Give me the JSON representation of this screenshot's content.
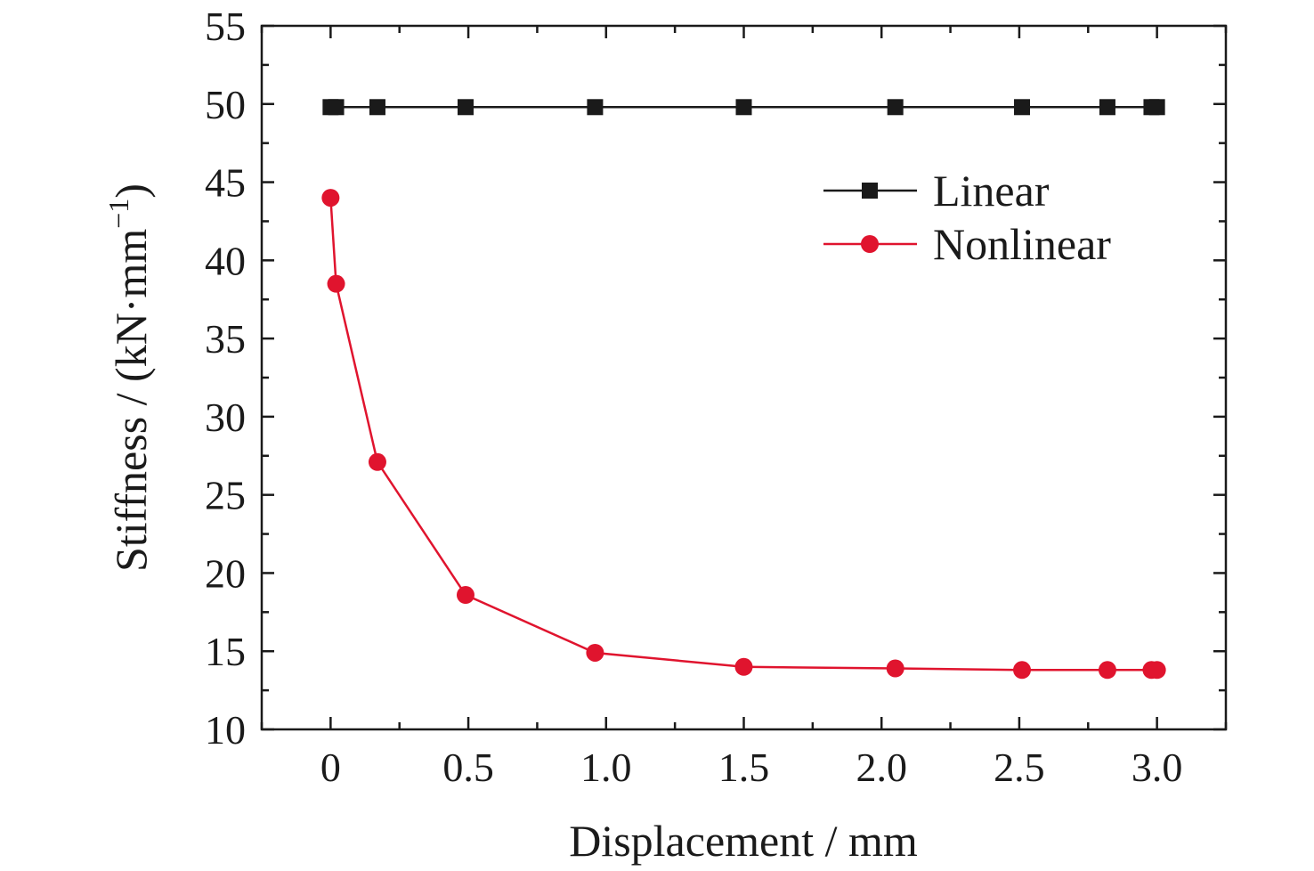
{
  "chart_data": {
    "type": "line",
    "xlabel": "Displacement / mm",
    "ylabel": "Stiffness / (kN·mm",
    "ylabel_superscript": "−1",
    "ylabel_close": ")",
    "xlim": [
      -0.25,
      3.25
    ],
    "ylim": [
      10,
      55
    ],
    "x_ticks": [
      0,
      0.5,
      1.0,
      1.5,
      2.0,
      2.5,
      3.0
    ],
    "x_tick_labels": [
      "0",
      "0.5",
      "1.0",
      "1.5",
      "2.0",
      "2.5",
      "3.0"
    ],
    "y_ticks": [
      10,
      15,
      20,
      25,
      30,
      35,
      40,
      45,
      50,
      55
    ],
    "y_tick_labels": [
      "10",
      "15",
      "20",
      "25",
      "30",
      "35",
      "40",
      "45",
      "50",
      "55"
    ],
    "legend_position": "top-right",
    "grid": false,
    "series": [
      {
        "name": "Linear",
        "marker": "square",
        "color": "#1a1a1a",
        "x": [
          0,
          0.02,
          0.17,
          0.49,
          0.96,
          1.5,
          2.05,
          2.51,
          2.82,
          2.98,
          3.0
        ],
        "y": [
          49.8,
          49.8,
          49.8,
          49.8,
          49.8,
          49.8,
          49.8,
          49.8,
          49.8,
          49.8,
          49.8
        ]
      },
      {
        "name": "Nonlinear",
        "marker": "circle",
        "color": "#e0142e",
        "x": [
          0,
          0.02,
          0.17,
          0.49,
          0.96,
          1.5,
          2.05,
          2.51,
          2.82,
          2.98,
          3.0
        ],
        "y": [
          44.0,
          38.5,
          27.1,
          18.6,
          14.9,
          14.0,
          13.9,
          13.8,
          13.8,
          13.8,
          13.8
        ]
      }
    ]
  }
}
